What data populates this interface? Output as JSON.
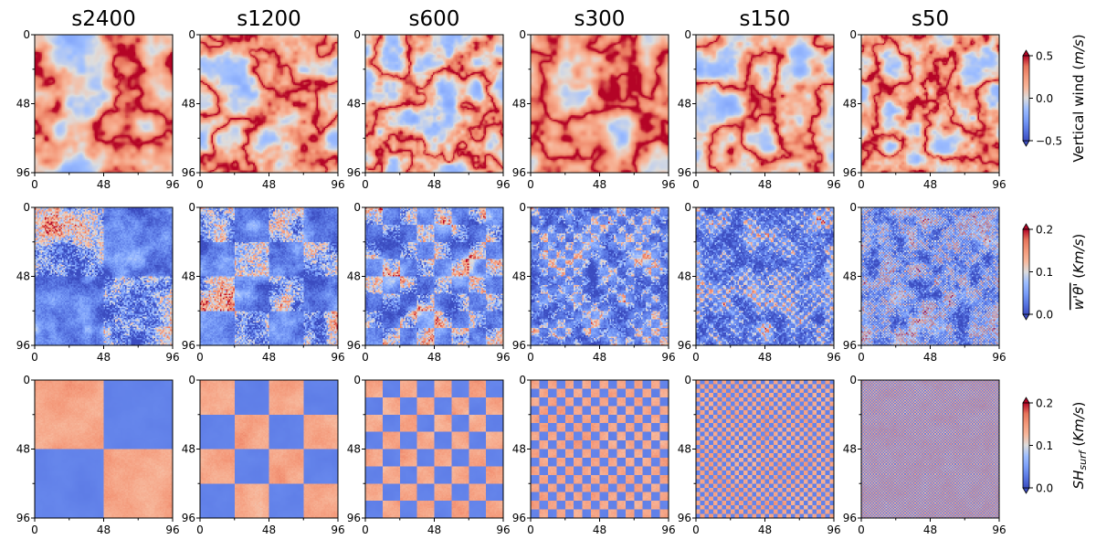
{
  "chart_data": {
    "type": "heatmap",
    "description_grid": "3 rows x 6 columns of 96x96 spatial fields",
    "columns": [
      {
        "title": "s2400",
        "checker_period": 48
      },
      {
        "title": "s1200",
        "checker_period": 24
      },
      {
        "title": "s600",
        "checker_period": 12
      },
      {
        "title": "s300",
        "checker_period": 6
      },
      {
        "title": "s150",
        "checker_period": 3
      },
      {
        "title": "s50",
        "checker_period": 1
      }
    ],
    "axes": {
      "xlim": [
        0,
        96
      ],
      "ylim": [
        96,
        0
      ],
      "major_ticks": [
        "0",
        "48",
        "96"
      ],
      "minor_ticks": [
        24,
        72
      ]
    },
    "rows": [
      {
        "variable": "vertical_wind",
        "colorbar": {
          "label": "Vertical wind (m/s)",
          "label_parts": [
            "Vertical wind (",
            "m/s",
            ")"
          ],
          "range": [
            -0.5,
            0.5
          ],
          "ticks": [
            "0.5",
            "0.0",
            "−0.5"
          ],
          "extend": "both"
        }
      },
      {
        "variable": "heat_flux",
        "colorbar": {
          "label": "w'θ' (Km/s)",
          "label_parts": [
            "w'θ'",
            " (",
            "Km/s",
            ")"
          ],
          "range": [
            0.0,
            0.2
          ],
          "ticks": [
            "0.2",
            "0.1",
            "0.0"
          ],
          "extend": "both"
        }
      },
      {
        "variable": "surface_heating",
        "colorbar": {
          "label": "SH_surf (Km/s)",
          "label_parts": [
            "SH",
            "surf",
            " (",
            "Km/s",
            ")"
          ],
          "range": [
            0.0,
            0.2
          ],
          "ticks": [
            "0.2",
            "0.1",
            "0.0"
          ],
          "extend": "both"
        }
      }
    ],
    "colormap": "coolwarm"
  }
}
